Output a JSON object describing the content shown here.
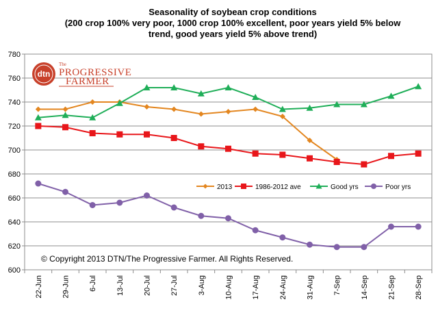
{
  "chart_data": {
    "type": "line",
    "title_lines": [
      "Seasonality of soybean crop conditions",
      "(200 crop 100%  very poor, 1000 crop 100% excellent, poor years yield 5% below",
      "trend, good years yield 5% above trend)"
    ],
    "categories": [
      "22-Jun",
      "29-Jun",
      "6-Jul",
      "13-Jul",
      "20-Jul",
      "27-Jul",
      "3-Aug",
      "10-Aug",
      "17-Aug",
      "24-Aug",
      "31-Aug",
      "7-Sep",
      "14-Sep",
      "21-Sep",
      "28-Sep"
    ],
    "ylim": [
      600,
      780
    ],
    "yticks": [
      600,
      620,
      640,
      660,
      680,
      700,
      720,
      740,
      760,
      780
    ],
    "ytick_labels": [
      "600",
      "620",
      "640",
      "660",
      "680",
      "700",
      "720",
      "740",
      "760",
      "780"
    ],
    "grid": true,
    "legend_position": "inside-middle-right",
    "series": [
      {
        "name": "2013",
        "color": "#e3861f",
        "marker": "diamond",
        "values": [
          734,
          734,
          740,
          740,
          736,
          734,
          730,
          732,
          734,
          728,
          708,
          692,
          null,
          null,
          null
        ]
      },
      {
        "name": "1986-2012 ave",
        "color": "#e8161a",
        "marker": "square",
        "values": [
          720,
          719,
          714,
          713,
          713,
          710,
          703,
          701,
          697,
          696,
          693,
          690,
          688,
          695,
          697
        ]
      },
      {
        "name": "Good yrs",
        "color": "#1fae58",
        "marker": "triangle",
        "values": [
          727,
          729,
          727,
          739,
          752,
          752,
          747,
          752,
          744,
          734,
          735,
          738,
          738,
          745,
          753
        ]
      },
      {
        "name": "Poor yrs",
        "color": "#8060a8",
        "marker": "circle",
        "values": [
          672,
          665,
          654,
          656,
          662,
          652,
          645,
          643,
          633,
          627,
          621,
          619,
          619,
          636,
          636
        ]
      }
    ],
    "annotation": "© Copyright 2013 DTN/The Progressive Farmer. All Rights Reserved."
  },
  "logo": {
    "mark": "dtn",
    "small": "The",
    "line1": "PROGRESSIVE",
    "line2": "FARMER"
  }
}
